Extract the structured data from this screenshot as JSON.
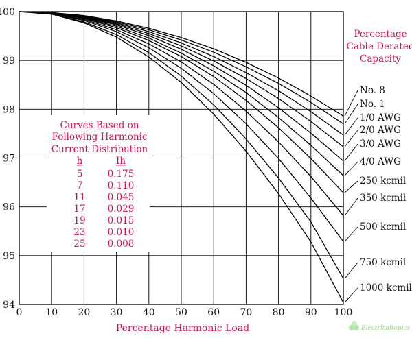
{
  "chart_data": {
    "type": "line",
    "title": "",
    "xlabel": "Percentage Harmonic Load",
    "ylabel": "",
    "xlim": [
      0,
      100
    ],
    "ylim": [
      94,
      100
    ],
    "x_ticks": [
      "0",
      "10",
      "20",
      "30",
      "40",
      "50",
      "60",
      "70",
      "80",
      "90",
      "100"
    ],
    "y_ticks": [
      "94",
      "95",
      "96",
      "97",
      "98",
      "99",
      "100"
    ],
    "grid": true,
    "right_label": [
      "Percentage",
      "Cable Derated",
      "Capacity"
    ],
    "table": {
      "title": [
        "Curves Based on",
        "Following Harmonic",
        "Current Distribution"
      ],
      "headers": [
        "h",
        "Ih"
      ],
      "rows": [
        [
          "5",
          "0.175"
        ],
        [
          "7",
          "0.110"
        ],
        [
          "11",
          "0.045"
        ],
        [
          "17",
          "0.029"
        ],
        [
          "19",
          "0.015"
        ],
        [
          "23",
          "0.010"
        ],
        [
          "25",
          "0.008"
        ]
      ]
    },
    "x": [
      0,
      10,
      20,
      30,
      40,
      50,
      60,
      70,
      80,
      90,
      100
    ],
    "series": [
      {
        "name": "No. 8",
        "values": [
          100,
          99.98,
          99.92,
          99.81,
          99.66,
          99.47,
          99.24,
          98.96,
          98.64,
          98.27,
          97.86
        ]
      },
      {
        "name": "No. 1",
        "values": [
          100,
          99.98,
          99.91,
          99.79,
          99.63,
          99.42,
          99.17,
          98.87,
          98.53,
          98.14,
          97.7
        ]
      },
      {
        "name": "1/0 AWG",
        "values": [
          100,
          99.98,
          99.9,
          99.77,
          99.59,
          99.36,
          99.08,
          98.75,
          98.38,
          97.95,
          97.47
        ]
      },
      {
        "name": "2/0 AWG",
        "values": [
          100,
          99.98,
          99.89,
          99.75,
          99.55,
          99.3,
          98.99,
          98.63,
          98.22,
          97.75,
          97.23
        ]
      },
      {
        "name": "3/0 AWG",
        "values": [
          100,
          99.97,
          99.88,
          99.73,
          99.51,
          99.23,
          98.89,
          98.49,
          98.03,
          97.51,
          96.94
        ]
      },
      {
        "name": "4/0 AWG",
        "values": [
          100,
          99.97,
          99.87,
          99.7,
          99.46,
          99.15,
          98.78,
          98.34,
          97.83,
          97.26,
          96.64
        ]
      },
      {
        "name": "250 kcmil",
        "values": [
          100,
          99.97,
          99.86,
          99.67,
          99.41,
          99.08,
          98.67,
          98.18,
          97.62,
          96.99,
          96.29
        ]
      },
      {
        "name": "350 kcmil",
        "values": [
          100,
          99.96,
          99.84,
          99.63,
          99.34,
          98.97,
          98.51,
          97.96,
          97.33,
          96.62,
          95.82
        ]
      },
      {
        "name": "500 kcmil",
        "values": [
          100,
          99.96,
          99.82,
          99.59,
          99.26,
          98.84,
          98.32,
          97.7,
          96.99,
          96.18,
          95.29
        ]
      },
      {
        "name": "750 kcmil",
        "values": [
          100,
          99.95,
          99.79,
          99.53,
          99.16,
          98.68,
          98.09,
          97.39,
          96.59,
          95.69,
          94.53
        ]
      },
      {
        "name": "1000 kcmil",
        "values": [
          100,
          99.95,
          99.77,
          99.48,
          99.07,
          98.55,
          97.9,
          97.14,
          96.27,
          95.28,
          94.04
        ]
      }
    ]
  },
  "watermark": "Electricaltopics"
}
